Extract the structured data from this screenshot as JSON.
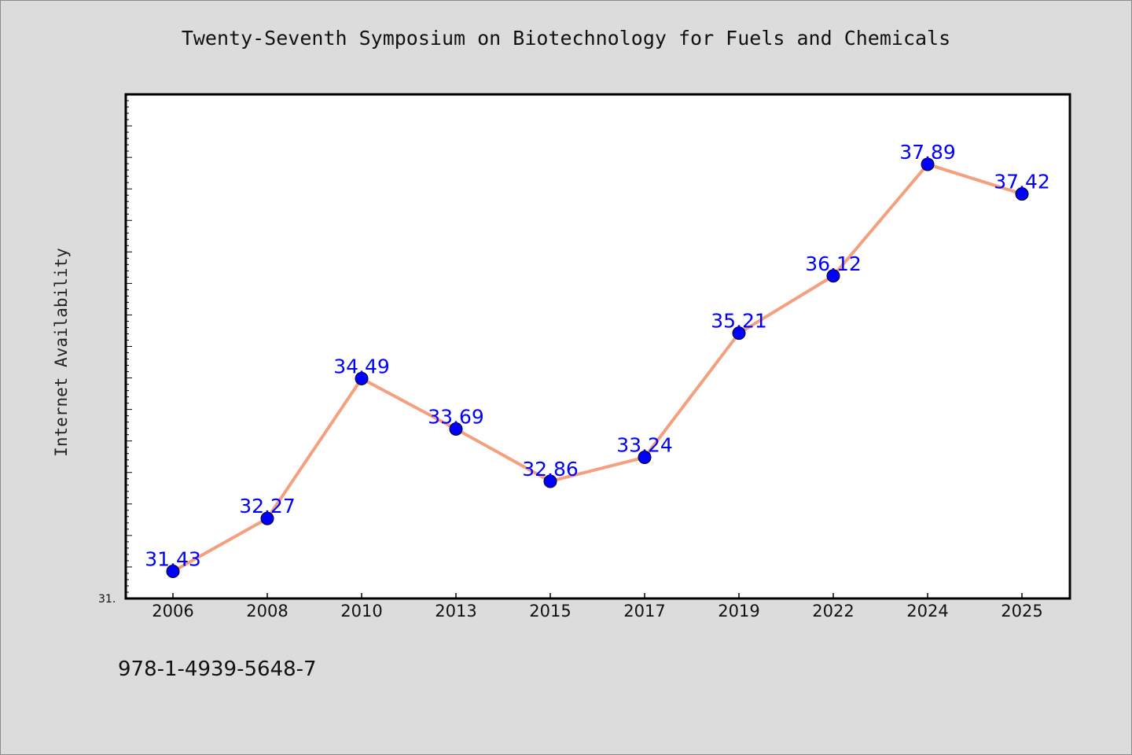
{
  "chart_data": {
    "type": "line",
    "title": "Twenty-Seventh Symposium on Biotechnology for Fuels and Chemicals",
    "xlabel": "",
    "ylabel": "Internet Availability",
    "categories": [
      "2006",
      "2008",
      "2010",
      "2013",
      "2015",
      "2017",
      "2019",
      "2022",
      "2024",
      "2025"
    ],
    "series": [
      {
        "values": [
          31.43,
          32.27,
          34.49,
          33.69,
          32.86,
          33.24,
          35.21,
          36.12,
          37.89,
          37.42
        ],
        "line_color": "#f4a07e",
        "marker_color": "#0000ff",
        "label_color": "#0000ff"
      }
    ],
    "ylim": [
      31.0,
      39.0
    ],
    "y_min_label": "31.",
    "grid": false,
    "legend": "none"
  },
  "footer": {
    "isbn": "978-1-4939-5648-7"
  },
  "colors": {
    "background": "#dcdcdc",
    "plot_background": "#ffffff"
  }
}
